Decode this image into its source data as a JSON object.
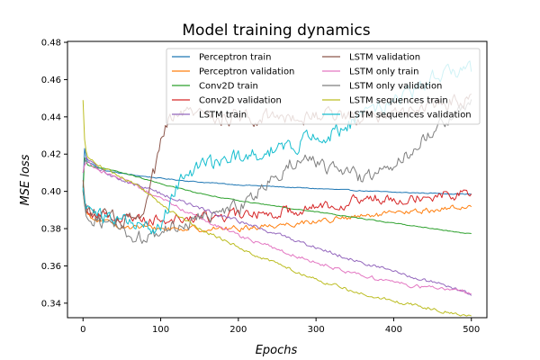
{
  "chart_data": {
    "type": "line",
    "title": "Model training dynamics",
    "xlabel": "Epochs",
    "ylabel": "MSE loss",
    "xlim": [
      -20,
      520
    ],
    "ylim": [
      0.3322,
      0.4805
    ],
    "xticks": [
      0,
      100,
      200,
      300,
      400,
      500
    ],
    "yticks": [
      0.34,
      0.36,
      0.38,
      0.4,
      0.42,
      0.44,
      0.46,
      0.48
    ],
    "ytick_labels": [
      "0.34",
      "0.36",
      "0.38",
      "0.40",
      "0.42",
      "0.44",
      "0.46",
      "0.48"
    ],
    "legend_location": "top-right",
    "legend_columns": 2,
    "series": [
      {
        "name": "Perceptron train",
        "color": "#1f77b4",
        "noise": 0.0003,
        "points": [
          [
            0,
            0.402
          ],
          [
            2,
            0.423
          ],
          [
            5,
            0.416
          ],
          [
            30,
            0.411
          ],
          [
            60,
            0.409
          ],
          [
            100,
            0.407
          ],
          [
            150,
            0.405
          ],
          [
            200,
            0.4035
          ],
          [
            250,
            0.4025
          ],
          [
            300,
            0.4015
          ],
          [
            350,
            0.4005
          ],
          [
            400,
            0.3995
          ],
          [
            450,
            0.399
          ],
          [
            500,
            0.3985
          ]
        ]
      },
      {
        "name": "Perceptron validation",
        "color": "#ff7f0e",
        "noise": 0.0018,
        "points": [
          [
            0,
            0.4
          ],
          [
            3,
            0.389
          ],
          [
            10,
            0.385
          ],
          [
            30,
            0.383
          ],
          [
            60,
            0.381
          ],
          [
            100,
            0.38
          ],
          [
            150,
            0.38
          ],
          [
            200,
            0.38
          ],
          [
            250,
            0.382
          ],
          [
            300,
            0.384
          ],
          [
            350,
            0.386
          ],
          [
            400,
            0.388
          ],
          [
            450,
            0.39
          ],
          [
            500,
            0.392
          ]
        ]
      },
      {
        "name": "Conv2D train",
        "color": "#2ca02c",
        "noise": 0.0003,
        "points": [
          [
            0,
            0.4
          ],
          [
            2,
            0.418
          ],
          [
            6,
            0.414
          ],
          [
            30,
            0.412
          ],
          [
            60,
            0.409
          ],
          [
            100,
            0.404
          ],
          [
            150,
            0.399
          ],
          [
            200,
            0.395
          ],
          [
            250,
            0.392
          ],
          [
            300,
            0.389
          ],
          [
            350,
            0.386
          ],
          [
            400,
            0.383
          ],
          [
            450,
            0.38
          ],
          [
            500,
            0.377
          ]
        ]
      },
      {
        "name": "Conv2D validation",
        "color": "#d62728",
        "noise": 0.0035,
        "points": [
          [
            0,
            0.4
          ],
          [
            3,
            0.391
          ],
          [
            10,
            0.388
          ],
          [
            30,
            0.387
          ],
          [
            60,
            0.386
          ],
          [
            100,
            0.385
          ],
          [
            150,
            0.386
          ],
          [
            200,
            0.387
          ],
          [
            250,
            0.389
          ],
          [
            300,
            0.392
          ],
          [
            350,
            0.395
          ],
          [
            400,
            0.397
          ],
          [
            450,
            0.398
          ],
          [
            500,
            0.4
          ]
        ]
      },
      {
        "name": "LSTM train",
        "color": "#9467bd",
        "noise": 0.0012,
        "points": [
          [
            0,
            0.41
          ],
          [
            3,
            0.418
          ],
          [
            20,
            0.412
          ],
          [
            50,
            0.406
          ],
          [
            100,
            0.399
          ],
          [
            150,
            0.391
          ],
          [
            200,
            0.384
          ],
          [
            250,
            0.377
          ],
          [
            300,
            0.37
          ],
          [
            350,
            0.363
          ],
          [
            400,
            0.357
          ],
          [
            450,
            0.351
          ],
          [
            500,
            0.345
          ]
        ]
      },
      {
        "name": "LSTM validation",
        "color": "#8c564b",
        "noise": 0.005,
        "points": [
          [
            0,
            0.406
          ],
          [
            3,
            0.392
          ],
          [
            20,
            0.386
          ],
          [
            60,
            0.384
          ],
          [
            78,
            0.386
          ],
          [
            85,
            0.398
          ],
          [
            92,
            0.41
          ],
          [
            100,
            0.425
          ],
          [
            110,
            0.436
          ],
          [
            125,
            0.441
          ],
          [
            150,
            0.441
          ],
          [
            200,
            0.44
          ],
          [
            250,
            0.441
          ],
          [
            300,
            0.441
          ],
          [
            350,
            0.44
          ],
          [
            400,
            0.443
          ],
          [
            450,
            0.446
          ],
          [
            480,
            0.449
          ],
          [
            500,
            0.45
          ]
        ]
      },
      {
        "name": "LSTM only train",
        "color": "#e377c2",
        "noise": 0.0012,
        "points": [
          [
            0,
            0.41
          ],
          [
            3,
            0.416
          ],
          [
            30,
            0.41
          ],
          [
            60,
            0.404
          ],
          [
            100,
            0.396
          ],
          [
            150,
            0.386
          ],
          [
            200,
            0.376
          ],
          [
            250,
            0.369
          ],
          [
            300,
            0.362
          ],
          [
            350,
            0.356
          ],
          [
            400,
            0.351
          ],
          [
            450,
            0.348
          ],
          [
            500,
            0.346
          ]
        ]
      },
      {
        "name": "LSTM only validation",
        "color": "#7f7f7f",
        "noise": 0.0045,
        "points": [
          [
            0,
            0.401
          ],
          [
            3,
            0.389
          ],
          [
            20,
            0.385
          ],
          [
            50,
            0.38
          ],
          [
            70,
            0.375
          ],
          [
            90,
            0.376
          ],
          [
            110,
            0.38
          ],
          [
            140,
            0.384
          ],
          [
            170,
            0.388
          ],
          [
            200,
            0.391
          ],
          [
            220,
            0.398
          ],
          [
            250,
            0.41
          ],
          [
            280,
            0.419
          ],
          [
            300,
            0.416
          ],
          [
            330,
            0.41
          ],
          [
            360,
            0.407
          ],
          [
            390,
            0.411
          ],
          [
            420,
            0.421
          ],
          [
            450,
            0.432
          ],
          [
            475,
            0.441
          ],
          [
            500,
            0.447
          ]
        ]
      },
      {
        "name": "LSTM sequences train",
        "color": "#bcbd22",
        "noise": 0.001,
        "points": [
          [
            0,
            0.449
          ],
          [
            2,
            0.428
          ],
          [
            5,
            0.419
          ],
          [
            20,
            0.414
          ],
          [
            50,
            0.408
          ],
          [
            80,
            0.4
          ],
          [
            110,
            0.39
          ],
          [
            150,
            0.38
          ],
          [
            200,
            0.37
          ],
          [
            250,
            0.361
          ],
          [
            300,
            0.353
          ],
          [
            350,
            0.346
          ],
          [
            400,
            0.341
          ],
          [
            450,
            0.337
          ],
          [
            500,
            0.333
          ]
        ]
      },
      {
        "name": "LSTM sequences validation",
        "color": "#17becf",
        "noise": 0.005,
        "points": [
          [
            0,
            0.402
          ],
          [
            3,
            0.392
          ],
          [
            20,
            0.387
          ],
          [
            50,
            0.384
          ],
          [
            80,
            0.381
          ],
          [
            90,
            0.378
          ],
          [
            100,
            0.382
          ],
          [
            110,
            0.393
          ],
          [
            120,
            0.403
          ],
          [
            150,
            0.412
          ],
          [
            180,
            0.416
          ],
          [
            200,
            0.418
          ],
          [
            230,
            0.419
          ],
          [
            250,
            0.423
          ],
          [
            300,
            0.429
          ],
          [
            330,
            0.432
          ],
          [
            350,
            0.438
          ],
          [
            380,
            0.445
          ],
          [
            400,
            0.448
          ],
          [
            430,
            0.454
          ],
          [
            450,
            0.462
          ],
          [
            475,
            0.463
          ],
          [
            500,
            0.464
          ]
        ]
      }
    ]
  }
}
